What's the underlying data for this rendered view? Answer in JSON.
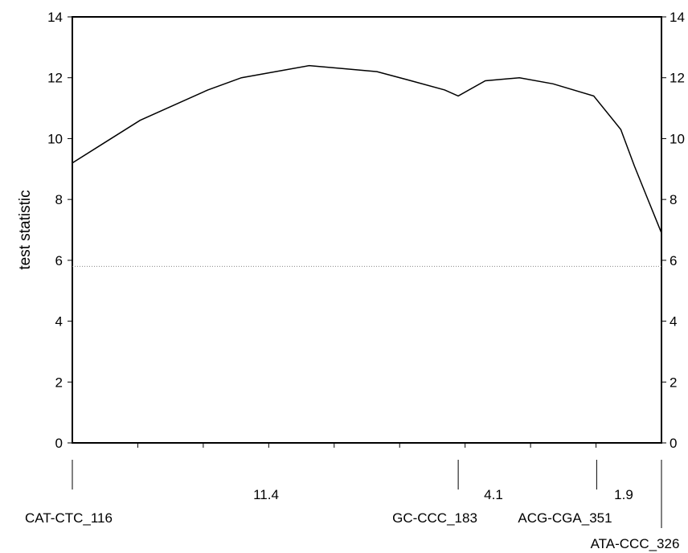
{
  "chart_data": {
    "type": "line",
    "ylabel": "test statistic",
    "ylim": [
      0,
      14
    ],
    "y_ticks": [
      0,
      2,
      4,
      6,
      8,
      10,
      12,
      14
    ],
    "secondary_y_axis": true,
    "x_position_range": [
      0,
      1
    ],
    "series": [
      {
        "x": [
          0.0,
          0.115,
          0.23,
          0.287,
          0.345,
          0.402,
          0.46,
          0.517,
          0.575,
          0.632,
          0.655,
          0.701,
          0.759,
          0.816,
          0.885,
          0.931,
          0.954,
          0.977,
          1.0
        ],
        "values": [
          9.2,
          10.6,
          11.6,
          12.0,
          12.2,
          12.4,
          12.3,
          12.2,
          11.9,
          11.6,
          11.4,
          11.9,
          12.0,
          11.8,
          11.4,
          10.3,
          9.1,
          8.0,
          6.9
        ]
      }
    ],
    "threshold": {
      "value": 5.8,
      "style": "dotted"
    },
    "markers": [
      {
        "position": 0.0,
        "label": "CAT-CTC_116"
      },
      {
        "position": 0.655,
        "label": "GC-CCC_183"
      },
      {
        "position": 0.89,
        "label": "ACG-CGA_351"
      },
      {
        "position": 1.0,
        "label": "ATA-CCC_326"
      }
    ],
    "intervals": [
      {
        "label": "11.4"
      },
      {
        "label": "4.1"
      },
      {
        "label": "1.9"
      }
    ]
  }
}
